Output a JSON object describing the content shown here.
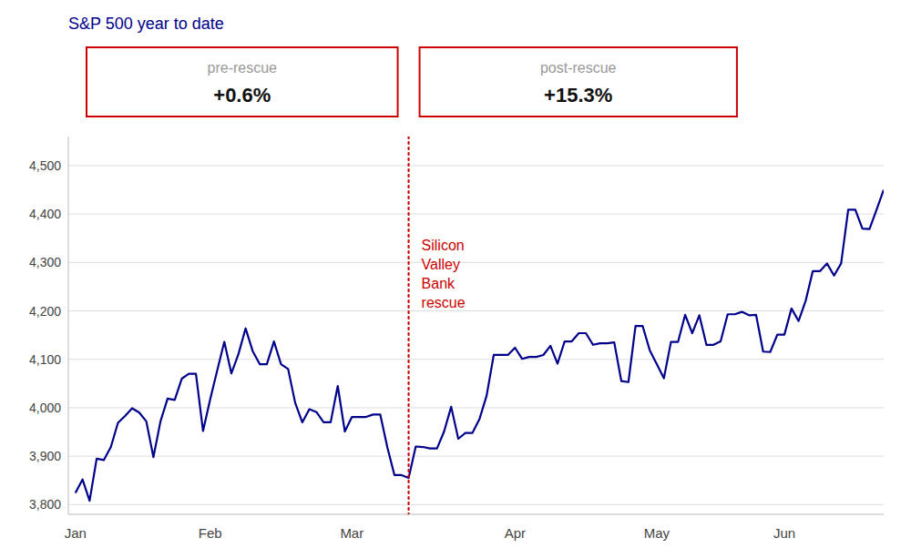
{
  "chart_data": {
    "type": "line",
    "title": "S&P 500 year to date",
    "color": "#00008B",
    "categories": [
      "Jan",
      null,
      null,
      null,
      null,
      null,
      null,
      null,
      null,
      null,
      null,
      null,
      null,
      null,
      null,
      null,
      null,
      null,
      null,
      "Feb",
      null,
      null,
      null,
      null,
      null,
      null,
      null,
      null,
      null,
      null,
      null,
      null,
      null,
      null,
      null,
      null,
      null,
      null,
      null,
      "Mar",
      null,
      null,
      null,
      null,
      null,
      null,
      null,
      null,
      null,
      null,
      null,
      null,
      null,
      null,
      null,
      null,
      null,
      null,
      null,
      null,
      null,
      null,
      "Apr",
      null,
      null,
      null,
      null,
      null,
      null,
      null,
      null,
      null,
      null,
      null,
      null,
      null,
      null,
      null,
      null,
      null,
      null,
      null,
      "May",
      null,
      null,
      null,
      null,
      null,
      null,
      null,
      null,
      null,
      null,
      null,
      null,
      null,
      null,
      null,
      null,
      null,
      "Jun",
      null,
      null,
      null,
      null,
      null,
      null,
      null,
      null,
      null,
      null,
      null,
      null,
      null,
      null
    ],
    "values": [
      3824,
      3852,
      3808,
      3895,
      3892,
      3919,
      3969,
      3983,
      3999,
      3990,
      3972,
      3898,
      3972,
      4019,
      4016,
      4060,
      4070,
      4070,
      3952,
      4017,
      4077,
      4136,
      4071,
      4111,
      4164,
      4117,
      4090,
      4090,
      4137,
      4090,
      4080,
      4010,
      3970,
      3997,
      3991,
      3970,
      3970,
      4045,
      3951,
      3981,
      3981,
      3981,
      3986,
      3986,
      3918,
      3861,
      3861,
      3855,
      3920,
      3919,
      3916,
      3916,
      3951,
      4002,
      3936,
      3948,
      3948,
      3977,
      4025,
      4109,
      4109,
      4109,
      4124,
      4101,
      4105,
      4105,
      4109,
      4128,
      4091,
      4137,
      4137,
      4154,
      4154,
      4130,
      4133,
      4133,
      4135,
      4055,
      4053,
      4169,
      4169,
      4119,
      4090,
      4061,
      4136,
      4136,
      4192,
      4154,
      4191,
      4130,
      4130,
      4137,
      4193,
      4193,
      4198,
      4191,
      4192,
      4116,
      4115,
      4151,
      4151,
      4205,
      4179,
      4221,
      4282,
      4282,
      4298,
      4273,
      4298,
      4409,
      4409,
      4370,
      4369,
      4409,
      4450
    ],
    "ylim": [
      3780,
      4560
    ],
    "yticks": [
      {
        "value": 3800,
        "label": "3,800"
      },
      {
        "value": 3900,
        "label": "3,900"
      },
      {
        "value": 4000,
        "label": "4,000"
      },
      {
        "value": 4100,
        "label": "4,100"
      },
      {
        "value": 4200,
        "label": "4,200"
      },
      {
        "value": 4300,
        "label": "4,300"
      },
      {
        "value": 4400,
        "label": "4,400"
      },
      {
        "value": 4500,
        "label": "4,500"
      }
    ],
    "grid": true,
    "annotations": [
      {
        "text": "Silicon\nValley\nBank\nrescue",
        "x": 47,
        "color": "#CC0000"
      }
    ],
    "boxes": [
      {
        "label": "pre-rescue",
        "value": 0.6,
        "value_label": "+0.6%",
        "color": "#CC0000"
      },
      {
        "label": "post-rescue",
        "value": 15.3,
        "value_label": "+15.3%",
        "color": "#CC0000"
      }
    ]
  }
}
